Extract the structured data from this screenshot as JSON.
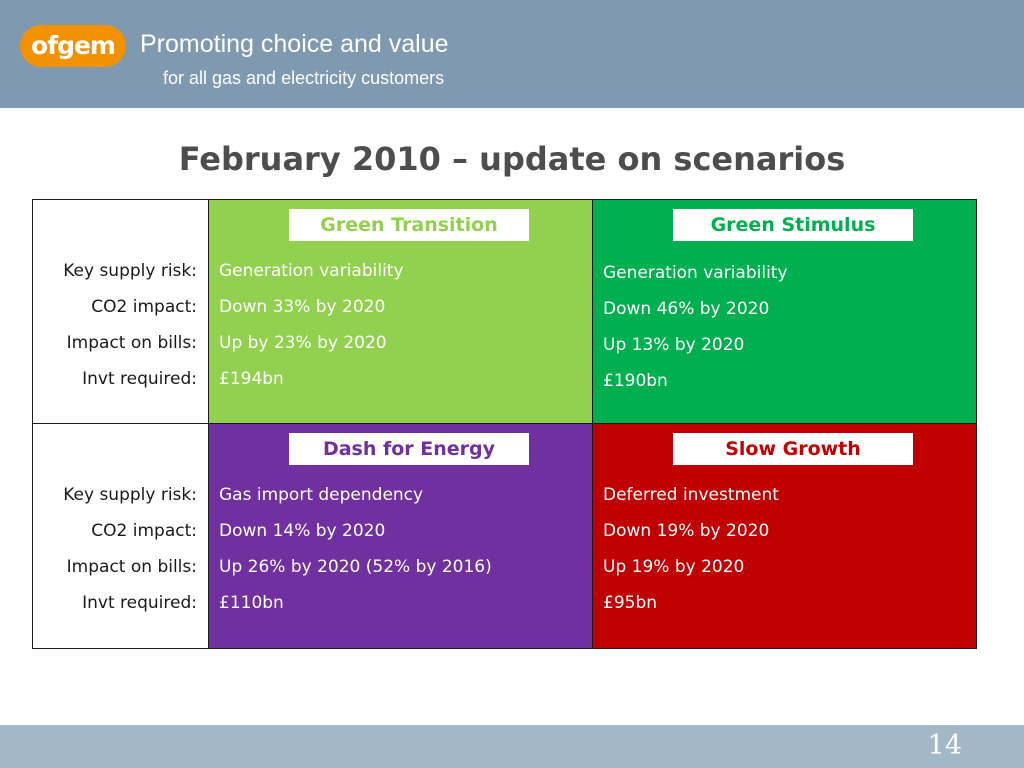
{
  "header": {
    "logo_text": "ofgem",
    "tagline_line1": "Promoting choice and value",
    "tagline_line2": "for all gas and electricity customers",
    "background_color": "#7f9ab0",
    "logo_color": "#f39200"
  },
  "slide": {
    "title": "February 2010 – update on scenarios",
    "page_number": "14"
  },
  "row_labels": [
    "Key supply risk:",
    "CO2 impact:",
    "Impact on bills:",
    "Invt required:"
  ],
  "scenarios": [
    {
      "name": "Green Transition",
      "color": "#92d050",
      "label_color": "#92d050",
      "values": [
        "Generation variability",
        "Down 33% by 2020",
        "Up by 23% by 2020",
        "£194bn"
      ]
    },
    {
      "name": "Green Stimulus",
      "color": "#00b050",
      "label_color": "#00b050",
      "values": [
        "Generation variability",
        "Down 46% by 2020",
        "Up 13% by 2020",
        "£190bn"
      ]
    },
    {
      "name": "Dash for Energy",
      "color": "#7030a0",
      "label_color": "#7030a0",
      "values": [
        "Gas import dependency",
        "Down 14% by 2020",
        "Up 26% by 2020 (52% by 2016)",
        "£110bn"
      ]
    },
    {
      "name": "Slow Growth",
      "color": "#c00000",
      "label_color": "#c00000",
      "values": [
        "Deferred investment",
        "Down 19% by 2020",
        "Up 19% by 2020",
        "£95bn"
      ]
    }
  ]
}
